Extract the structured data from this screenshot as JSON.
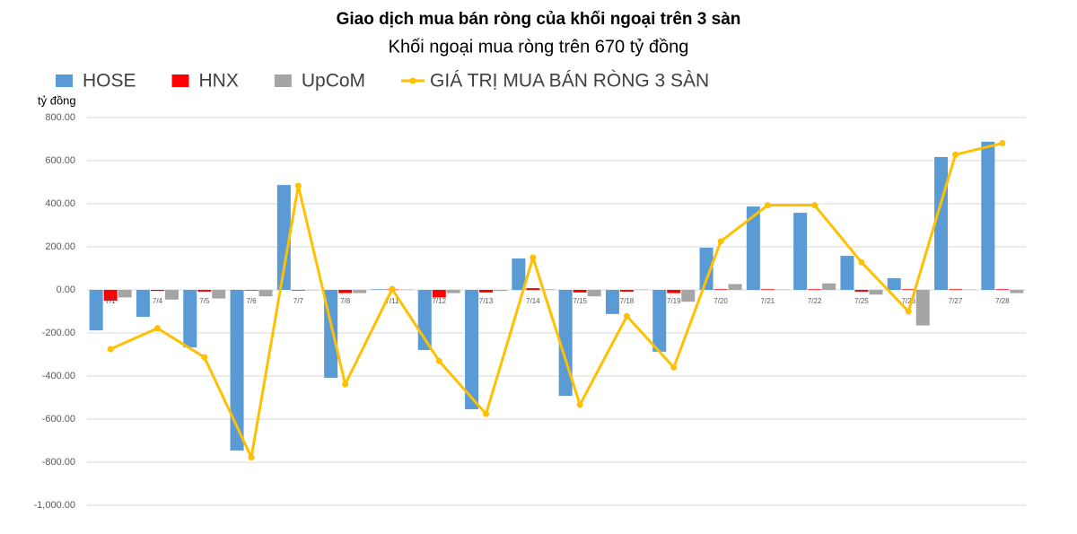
{
  "chart_data": {
    "type": "bar",
    "title": "Giao dịch mua bán ròng của khối ngoại trên 3 sàn",
    "subtitle": "Khối ngoại mua ròng trên 670 tỷ đồng",
    "y_label": "tỷ đồng",
    "categories": [
      "7/1",
      "7/4",
      "7/5",
      "7/6",
      "7/7",
      "7/8",
      "7/11",
      "7/12",
      "7/13",
      "7/14",
      "7/15",
      "7/18",
      "7/19",
      "7/20",
      "7/21",
      "7/22",
      "7/25",
      "7/26",
      "7/27",
      "7/28"
    ],
    "series": [
      {
        "name": "HOSE",
        "color": "#5b9bd5",
        "values": [
          -188,
          -125,
          -267,
          -746,
          487,
          -408,
          3,
          -279,
          -554,
          146,
          -492,
          -112,
          -287,
          196,
          387,
          358,
          158,
          54,
          617,
          688
        ]
      },
      {
        "name": "HNX",
        "color": "#ff0000",
        "values": [
          -50,
          -5,
          -8,
          -3,
          -3,
          -15,
          2,
          -35,
          -12,
          8,
          -12,
          -8,
          -15,
          3,
          3,
          3,
          -8,
          3,
          3,
          3
        ]
      },
      {
        "name": "UpCoM",
        "color": "#a5a5a5",
        "values": [
          -35,
          -45,
          -40,
          -30,
          -2,
          -15,
          2,
          -15,
          -5,
          3,
          -30,
          2,
          -55,
          27,
          2,
          30,
          -22,
          -165,
          2,
          -15
        ]
      },
      {
        "name": "GIÁ TRỊ MUA BÁN RÒNG 3 SÀN",
        "color": "#ffc000",
        "type": "line",
        "values": [
          -275,
          -178,
          -313,
          -777,
          483,
          -438,
          4,
          -330,
          -576,
          150,
          -533,
          -122,
          -360,
          225,
          393,
          393,
          128,
          -100,
          628,
          681
        ]
      }
    ],
    "ylim": [
      -1000,
      800
    ],
    "yticks": [
      {
        "value": -1000,
        "label": "-1,000.00"
      },
      {
        "value": -800,
        "label": "-800.00"
      },
      {
        "value": -600,
        "label": "-600.00"
      },
      {
        "value": -400,
        "label": "-400.00"
      },
      {
        "value": -200,
        "label": "-200.00"
      },
      {
        "value": 0,
        "label": "0.00"
      },
      {
        "value": 200,
        "label": "200.00"
      },
      {
        "value": 400,
        "label": "400.00"
      },
      {
        "value": 600,
        "label": "600.00"
      },
      {
        "value": 800,
        "label": "800.00"
      }
    ],
    "grid": true,
    "legend": "top"
  }
}
